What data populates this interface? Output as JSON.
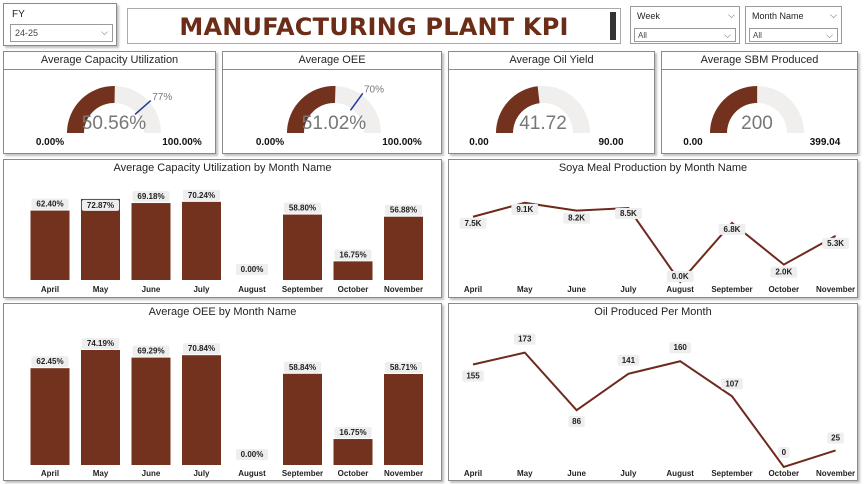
{
  "header": {
    "title": "MANUFACTURING PLANT KPI"
  },
  "slicers": {
    "fy": {
      "label": "FY",
      "value": "24-25"
    },
    "week": {
      "label": "Week",
      "value": "All"
    },
    "month": {
      "label": "Month Name",
      "value": "All"
    }
  },
  "colors": {
    "accent": "#73321e",
    "track": "#f0efee",
    "target": "#1f3a93",
    "title": "#6b2d17"
  },
  "gauges": [
    {
      "title": "Average Capacity Utilization",
      "value": 50.56,
      "value_label": "50.56%",
      "min_label": "0.00%",
      "max_label": "100.00%",
      "min": 0,
      "max": 100,
      "target": 77,
      "target_label": "77%"
    },
    {
      "title": "Average OEE",
      "value": 51.02,
      "value_label": "51.02%",
      "min_label": "0.00%",
      "max_label": "100.00%",
      "min": 0,
      "max": 100,
      "target": 70,
      "target_label": "70%"
    },
    {
      "title": "Average Oil Yield",
      "value": 41.72,
      "value_label": "41.72",
      "min_label": "0.00",
      "max_label": "90.00",
      "min": 0,
      "max": 90
    },
    {
      "title": "Average SBM Produced",
      "value": 200,
      "value_label": "200",
      "min_label": "0.00",
      "max_label": "399.04",
      "min": 0,
      "max": 399.04
    }
  ],
  "chart_data": [
    {
      "type": "bar",
      "title": "Average Capacity Utilization by Month Name",
      "categories": [
        "April",
        "May",
        "June",
        "July",
        "August",
        "September",
        "October",
        "November"
      ],
      "values": [
        62.4,
        72.87,
        69.18,
        70.24,
        0.0,
        58.8,
        16.75,
        56.88
      ],
      "labels": [
        "62.40%",
        "72.87%",
        "69.18%",
        "70.24%",
        "0.00%",
        "58.80%",
        "16.75%",
        "56.88%"
      ],
      "ylim": [
        0,
        80
      ]
    },
    {
      "type": "line",
      "title": "Soya Meal Production by Month Name",
      "categories": [
        "April",
        "May",
        "June",
        "July",
        "August",
        "September",
        "October",
        "November"
      ],
      "values": [
        7500,
        9100,
        8200,
        8500,
        0,
        6800,
        2000,
        5300
      ],
      "labels": [
        "7.5K",
        "9.1K",
        "8.2K",
        "8.5K",
        "0.0K",
        "6.8K",
        "2.0K",
        "5.3K"
      ],
      "ylim": [
        0,
        10000
      ]
    },
    {
      "type": "bar",
      "title": "Average OEE by Month Name",
      "categories": [
        "April",
        "May",
        "June",
        "July",
        "August",
        "September",
        "October",
        "November"
      ],
      "values": [
        62.45,
        74.19,
        69.29,
        70.84,
        0.0,
        58.84,
        16.75,
        58.71
      ],
      "labels": [
        "62.45%",
        "74.19%",
        "69.29%",
        "70.84%",
        "0.00%",
        "58.84%",
        "16.75%",
        "58.71%"
      ],
      "ylim": [
        0,
        80
      ]
    },
    {
      "type": "line",
      "title": "Oil Produced Per Month",
      "categories": [
        "April",
        "May",
        "June",
        "July",
        "August",
        "September",
        "October",
        "November"
      ],
      "values": [
        155,
        173,
        86,
        141,
        160,
        107,
        0,
        25
      ],
      "labels": [
        "155",
        "173",
        "86",
        "141",
        "160",
        "107",
        "0",
        "25"
      ],
      "ylim": [
        0,
        180
      ]
    }
  ]
}
